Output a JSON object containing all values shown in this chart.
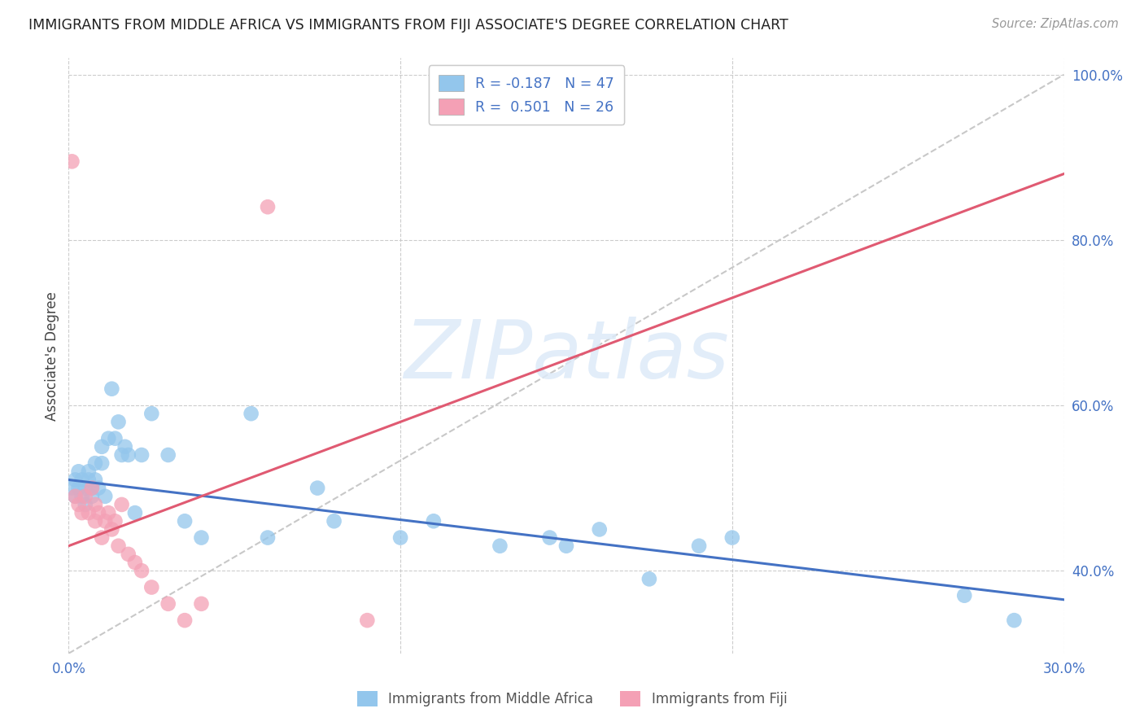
{
  "title": "IMMIGRANTS FROM MIDDLE AFRICA VS IMMIGRANTS FROM FIJI ASSOCIATE'S DEGREE CORRELATION CHART",
  "source": "Source: ZipAtlas.com",
  "ylabel": "Associate's Degree",
  "xlim": [
    0.0,
    0.3
  ],
  "ylim": [
    0.3,
    1.02
  ],
  "blue_color": "#93C6EC",
  "pink_color": "#F4A0B5",
  "blue_line_color": "#4472C4",
  "pink_line_color": "#E05A72",
  "dashed_line_color": "#C8C8C8",
  "background_color": "#FFFFFF",
  "watermark": "ZIPatlas",
  "legend_blue_label_r": "-0.187",
  "legend_blue_label_n": "47",
  "legend_pink_label_r": "0.501",
  "legend_pink_label_n": "26",
  "legend_blue_color": "#93C6EC",
  "legend_pink_color": "#F4A0B5",
  "grid_color": "#CCCCCC",
  "ytick_vals": [
    0.4,
    0.6,
    0.8,
    1.0
  ],
  "ytick_labels": [
    "40.0%",
    "60.0%",
    "80.0%",
    "100.0%"
  ],
  "xtick_vals": [
    0.0,
    0.1,
    0.2,
    0.3
  ],
  "xtick_labels": [
    "0.0%",
    "",
    "",
    "30.0%"
  ],
  "blue_scatter_x": [
    0.001,
    0.002,
    0.002,
    0.003,
    0.003,
    0.004,
    0.004,
    0.005,
    0.005,
    0.006,
    0.006,
    0.007,
    0.007,
    0.008,
    0.008,
    0.009,
    0.01,
    0.01,
    0.011,
    0.012,
    0.013,
    0.014,
    0.015,
    0.016,
    0.017,
    0.018,
    0.02,
    0.022,
    0.025,
    0.03,
    0.035,
    0.04,
    0.055,
    0.06,
    0.075,
    0.08,
    0.1,
    0.11,
    0.13,
    0.145,
    0.15,
    0.16,
    0.175,
    0.19,
    0.2,
    0.27,
    0.285
  ],
  "blue_scatter_y": [
    0.5,
    0.51,
    0.49,
    0.52,
    0.5,
    0.49,
    0.51,
    0.48,
    0.5,
    0.52,
    0.51,
    0.49,
    0.5,
    0.53,
    0.51,
    0.5,
    0.55,
    0.53,
    0.49,
    0.56,
    0.62,
    0.56,
    0.58,
    0.54,
    0.55,
    0.54,
    0.47,
    0.54,
    0.59,
    0.54,
    0.46,
    0.44,
    0.59,
    0.44,
    0.5,
    0.46,
    0.44,
    0.46,
    0.43,
    0.44,
    0.43,
    0.45,
    0.39,
    0.43,
    0.44,
    0.37,
    0.34
  ],
  "pink_scatter_x": [
    0.001,
    0.002,
    0.003,
    0.004,
    0.005,
    0.006,
    0.007,
    0.008,
    0.008,
    0.009,
    0.01,
    0.011,
    0.012,
    0.013,
    0.014,
    0.015,
    0.016,
    0.018,
    0.02,
    0.022,
    0.025,
    0.03,
    0.035,
    0.04,
    0.06,
    0.09
  ],
  "pink_scatter_y": [
    0.895,
    0.49,
    0.48,
    0.47,
    0.49,
    0.47,
    0.5,
    0.48,
    0.46,
    0.47,
    0.44,
    0.46,
    0.47,
    0.45,
    0.46,
    0.43,
    0.48,
    0.42,
    0.41,
    0.4,
    0.38,
    0.36,
    0.34,
    0.36,
    0.84,
    0.34
  ],
  "bottom_legend_blue": "Immigrants from Middle Africa",
  "bottom_legend_pink": "Immigrants from Fiji",
  "blue_regline_x": [
    0.0,
    0.3
  ],
  "blue_regline_y": [
    0.51,
    0.365
  ],
  "pink_regline_x": [
    0.0,
    0.3
  ],
  "pink_regline_y": [
    0.43,
    0.88
  ],
  "diag_line_x": [
    0.0,
    0.3
  ],
  "diag_line_y": [
    0.3,
    1.0
  ]
}
